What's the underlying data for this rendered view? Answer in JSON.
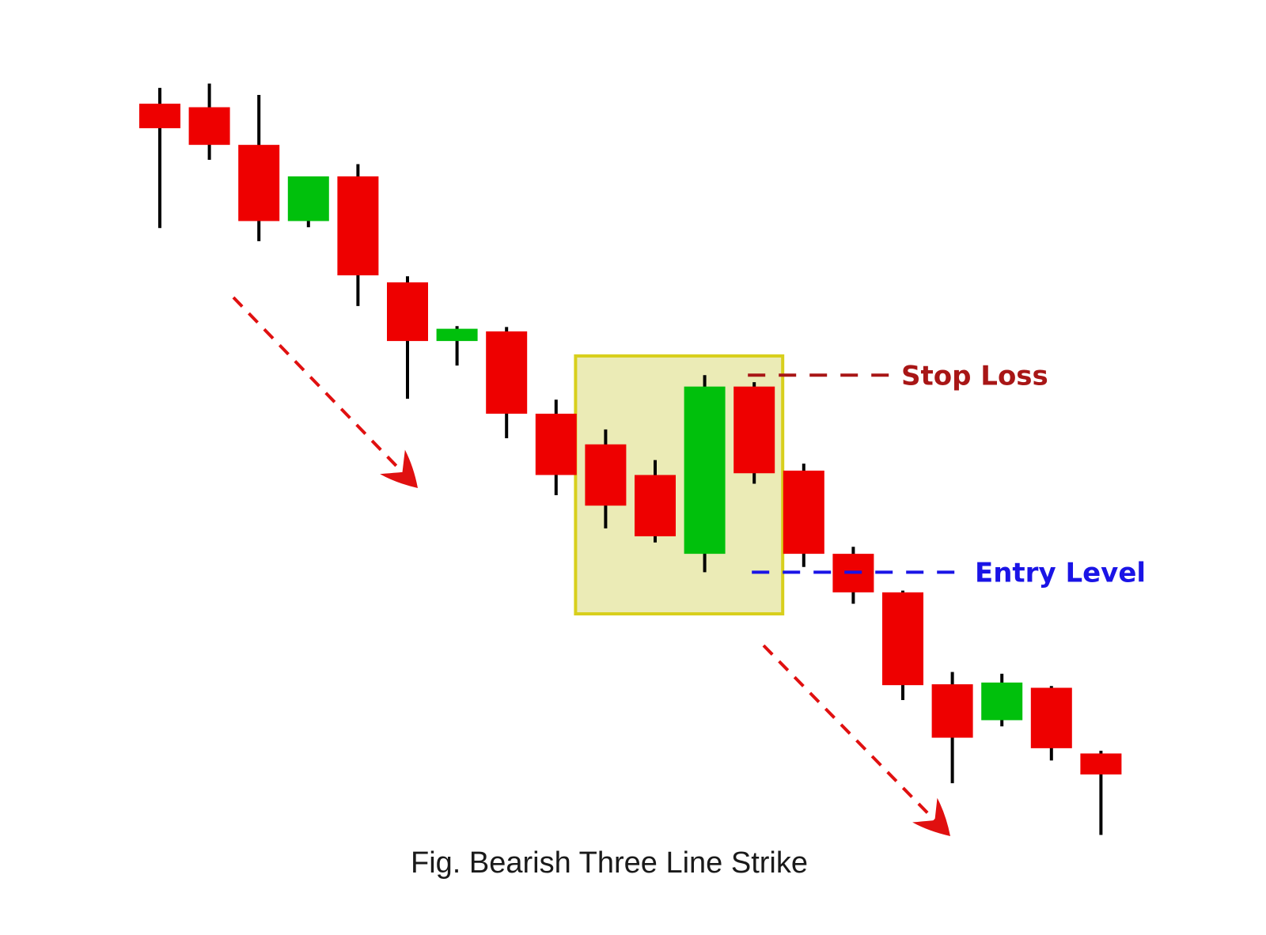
{
  "caption": "Fig. Bearish Three Line Strike",
  "annotations": {
    "stop_loss_label": "Stop Loss",
    "entry_level_label": "Entry Level"
  },
  "colors": {
    "bear": "#ee0000",
    "bull": "#00c00c",
    "wick": "#000000",
    "stop_loss": "#a81616",
    "entry_level": "#1a14e6",
    "trend_arrow": "#e01010",
    "highlight_fill": "#ebebb6",
    "highlight_stroke": "#d8cf1c"
  },
  "chart_data": {
    "type": "candlestick",
    "title": "Fig. Bearish Three Line Strike",
    "xlabel": "",
    "ylabel": "",
    "axes_visible": false,
    "grid": false,
    "ylim": [
      0,
      1000
    ],
    "candles": [
      {
        "open": 927,
        "high": 945,
        "low": 785,
        "close": 899,
        "direction": "bear"
      },
      {
        "open": 923,
        "high": 950,
        "low": 863,
        "close": 880,
        "direction": "bear"
      },
      {
        "open": 880,
        "high": 937,
        "low": 770,
        "close": 793,
        "direction": "bear"
      },
      {
        "open": 793,
        "high": 844,
        "low": 786,
        "close": 844,
        "direction": "bull"
      },
      {
        "open": 844,
        "high": 858,
        "low": 696,
        "close": 731,
        "direction": "bear"
      },
      {
        "open": 723,
        "high": 730,
        "low": 590,
        "close": 656,
        "direction": "bear"
      },
      {
        "open": 656,
        "high": 673,
        "low": 628,
        "close": 670,
        "direction": "bull"
      },
      {
        "open": 667,
        "high": 672,
        "low": 545,
        "close": 573,
        "direction": "bear"
      },
      {
        "open": 573,
        "high": 589,
        "low": 480,
        "close": 503,
        "direction": "bear"
      },
      {
        "open": 538,
        "high": 555,
        "low": 442,
        "close": 468,
        "direction": "bear"
      },
      {
        "open": 503,
        "high": 520,
        "low": 426,
        "close": 433,
        "direction": "bear"
      },
      {
        "open": 413,
        "high": 617,
        "low": 392,
        "close": 604,
        "direction": "bull"
      },
      {
        "open": 604,
        "high": 609,
        "low": 493,
        "close": 505,
        "direction": "bear"
      },
      {
        "open": 508,
        "high": 516,
        "low": 398,
        "close": 413,
        "direction": "bear"
      },
      {
        "open": 413,
        "high": 421,
        "low": 356,
        "close": 369,
        "direction": "bear"
      },
      {
        "open": 369,
        "high": 371,
        "low": 246,
        "close": 263,
        "direction": "bear"
      },
      {
        "open": 264,
        "high": 278,
        "low": 151,
        "close": 203,
        "direction": "bear"
      },
      {
        "open": 223,
        "high": 276,
        "low": 216,
        "close": 266,
        "direction": "bull"
      },
      {
        "open": 260,
        "high": 262,
        "low": 177,
        "close": 191,
        "direction": "bear"
      },
      {
        "open": 185,
        "high": 188,
        "low": 92,
        "close": 161,
        "direction": "bear"
      }
    ],
    "stop_loss": 617,
    "entry_level": 392,
    "highlighted_pattern": {
      "first_candle": 9,
      "last_candle": 12
    },
    "trend_arrows": [
      "down",
      "down"
    ]
  }
}
